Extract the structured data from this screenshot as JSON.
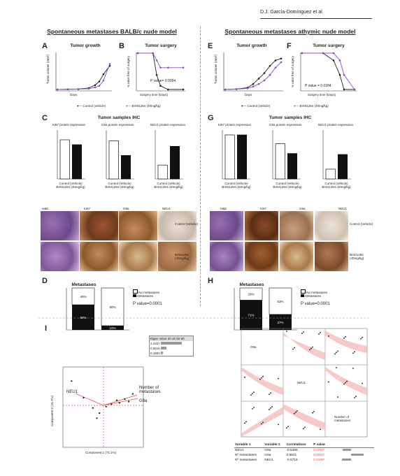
{
  "header": {
    "author": "D.J. García-Domínguez et al."
  },
  "left": {
    "title": "Spontaneous metastases BALB/c nude model",
    "panel_A": {
      "letter": "A",
      "title": "Tumor growth",
      "ylabel": "Tumor volume (mm³)",
      "xlabel": "Days"
    },
    "panel_B": {
      "letter": "B",
      "title": "Tumor surgery",
      "ylabel": "% mice free of surgery",
      "xlabel": "Surgery time (Days)",
      "pvalue": "P value= 0.0004"
    },
    "legend": {
      "control": "Control (vehicle)",
      "treat": "BIX01294 (40mg/kg)"
    },
    "panel_C": {
      "letter": "C",
      "title": "Tumor samples IHC",
      "ki67": "Ki67 protein expression",
      "g9a": "G9a protein expression",
      "neu1": "NEU1 protein expression",
      "ki67_ylabel": "% Ki67 positive tumor cells",
      "g9a_ylabel": "% G9a strong positive tumor cells",
      "neu1_ylabel": "H-score of NEU1 tumor cells",
      "cat_control": "Control (Vehicle)",
      "cat_treat": "BIX01294 (40mg/kg)"
    },
    "ihc": {
      "cols": [
        "H&E",
        "Ki67",
        "G9a",
        "NEU1"
      ],
      "row1": "Control (Vehicle)",
      "row2": "BIX01294 (40mg/kg)"
    },
    "panel_D": {
      "letter": "D",
      "title": "Metastases",
      "ylabel": "Percentage of mice",
      "legend_no": "No metastases",
      "legend_yes": "Metastases",
      "bar1_no": "40%",
      "bar1_yes": "60%",
      "bar2_no": "90%",
      "bar2_yes": "10%",
      "pvalue": "P value=0.0001"
    }
  },
  "right": {
    "title": "Spontaneous metastases athymic nude model",
    "panel_E": {
      "letter": "E",
      "title": "Tumor growth",
      "ylabel": "Tumor volume (mm³)",
      "xlabel": "Days"
    },
    "panel_F": {
      "letter": "F",
      "title": "Tumor surgery",
      "ylabel": "% mice free of surgery",
      "xlabel": "Surgery time (Days)",
      "pvalue": "P value = 0.0184"
    },
    "legend": {
      "control": "Control (vehicle)",
      "treat": "BIX01294 (40mg/kg)"
    },
    "panel_G": {
      "letter": "G",
      "title": "Tumor samples IHC",
      "ki67": "Ki67 protein expression",
      "g9a": "G9a protein expression",
      "neu1": "NEU1 protein expression"
    },
    "ihc": {
      "cols": [
        "H&E",
        "Ki67",
        "G9a",
        "NEU1"
      ],
      "row1": "Control (Vehicle)",
      "row2": "BIX01294 (40mg/kg)"
    },
    "panel_H": {
      "letter": "H",
      "title": "Metastases",
      "ylabel": "Percentage of mice",
      "legend_no": "No metastases",
      "legend_yes": "Metastases",
      "bar1_no": "29%",
      "bar1_yes": "71%",
      "bar2_no": "63%",
      "bar2_yes": "37%",
      "pvalue": "P value=0.0001"
    }
  },
  "panel_I": {
    "letter": "I",
    "xlabel": "Component 1 (71.1%)",
    "ylabel": "Component 2 (16.7%)",
    "eigen_title": "Eigen value",
    "eigen_scale": "20 40 60 80",
    "eigen_values": [
      "2.2327",
      "0.5516",
      "0.1803"
    ],
    "var_neu1": "NEU1",
    "var_meta": "Number of metastases",
    "var_g9a": "G9a",
    "matrix_g9a": "G9a",
    "matrix_neu1": "NEU1",
    "matrix_meta": "Number of metastases",
    "table_headers": [
      "Variable 1",
      "Variable 2",
      "Correlations",
      "P value"
    ],
    "table_rows": [
      [
        "NEU1",
        "G9a",
        "-0.5366",
        "0.0252*"
      ],
      [
        "Nº metastases",
        "G9a",
        "0.8541",
        "0.0004*"
      ],
      [
        "Nº metastases",
        "NEU1",
        "-0.5716",
        "0.0165*"
      ]
    ]
  },
  "colors": {
    "control": "#222222",
    "treat": "#8a4fbf",
    "red": "#d9534f",
    "pink": "#f3b3b0"
  },
  "chart_data": [
    {
      "type": "line",
      "panel": "A",
      "x": [
        0,
        5,
        10,
        15,
        18,
        20,
        22,
        25
      ],
      "series": [
        {
          "name": "Control (vehicle)",
          "values": [
            0,
            5,
            10,
            40,
            120,
            220,
            420,
            650
          ]
        },
        {
          "name": "BIX01294 (40mg/kg)",
          "values": [
            0,
            5,
            8,
            20,
            60,
            100,
            250,
            700
          ]
        }
      ],
      "ylim": [
        0,
        1000
      ]
    },
    {
      "type": "line",
      "panel": "B",
      "x": [
        0,
        20,
        25,
        30,
        40,
        60
      ],
      "series": [
        {
          "name": "Control (vehicle)",
          "values": [
            100,
            100,
            40,
            10,
            0,
            0
          ]
        },
        {
          "name": "BIX01294 (40mg/kg)",
          "values": [
            100,
            100,
            80,
            60,
            60,
            60
          ]
        }
      ],
      "ylim": [
        0,
        100
      ]
    },
    {
      "type": "bar",
      "panel": "C-Ki67",
      "categories": [
        "Control (Vehicle)",
        "BIX01294 (40mg/kg)"
      ],
      "values": [
        80,
        70
      ],
      "ylim": [
        0,
        100
      ]
    },
    {
      "type": "bar",
      "panel": "C-G9a",
      "categories": [
        "Control (Vehicle)",
        "BIX01294 (40mg/kg)"
      ],
      "values": [
        78,
        48
      ],
      "ylim": [
        0,
        100
      ]
    },
    {
      "type": "bar",
      "panel": "C-NEU1",
      "categories": [
        "Control (Vehicle)",
        "BIX01294 (40mg/kg)"
      ],
      "values": [
        85,
        200
      ],
      "ylim": [
        0,
        300
      ]
    },
    {
      "type": "bar",
      "panel": "D",
      "categories": [
        "Control (Vehicle)",
        "BIX01294 (40mg/kg)"
      ],
      "series": [
        {
          "name": "Metastases",
          "values": [
            60,
            10
          ]
        },
        {
          "name": "No metastases",
          "values": [
            40,
            90
          ]
        }
      ],
      "ylim": [
        0,
        100
      ]
    },
    {
      "type": "line",
      "panel": "E",
      "x": [
        0,
        4,
        8,
        10,
        12,
        14,
        16,
        18,
        20
      ],
      "series": [
        {
          "name": "Control (vehicle)",
          "values": [
            0,
            10,
            50,
            150,
            300,
            450,
            650,
            800,
            850
          ]
        },
        {
          "name": "BIX01294 (40mg/kg)",
          "values": [
            0,
            8,
            30,
            80,
            150,
            250,
            400,
            600,
            750
          ]
        }
      ],
      "ylim": [
        0,
        1000
      ]
    },
    {
      "type": "line",
      "panel": "F",
      "x": [
        0,
        10,
        15,
        18,
        20,
        25
      ],
      "series": [
        {
          "name": "Control (vehicle)",
          "values": [
            100,
            100,
            80,
            40,
            0,
            0
          ]
        },
        {
          "name": "BIX01294 (40mg/kg)",
          "values": [
            100,
            100,
            100,
            80,
            40,
            0
          ]
        }
      ],
      "ylim": [
        0,
        100
      ]
    },
    {
      "type": "bar",
      "panel": "G-Ki67",
      "categories": [
        "Control (Vehicle)",
        "BIX01294 (40mg/kg)"
      ],
      "values": [
        90,
        90
      ],
      "ylim": [
        0,
        100
      ]
    },
    {
      "type": "bar",
      "panel": "G-G9a",
      "categories": [
        "Control (Vehicle)",
        "BIX01294 (40mg/kg)"
      ],
      "values": [
        72,
        52
      ],
      "ylim": [
        0,
        100
      ]
    },
    {
      "type": "bar",
      "panel": "G-NEU1",
      "categories": [
        "Control (Vehicle)",
        "BIX01294 (40mg/kg)"
      ],
      "values": [
        20,
        50
      ],
      "ylim": [
        0,
        100
      ]
    },
    {
      "type": "bar",
      "panel": "H",
      "categories": [
        "Control (Vehicle)",
        "BIX01294 (40mg/kg)"
      ],
      "series": [
        {
          "name": "Metastases",
          "values": [
            71,
            37
          ]
        },
        {
          "name": "No metastases",
          "values": [
            29,
            63
          ]
        }
      ],
      "ylim": [
        0,
        100
      ]
    },
    {
      "type": "scatter",
      "panel": "I",
      "x": [
        -2.4,
        -1.5,
        -0.8,
        -0.5,
        -0.3,
        0.2,
        0.6,
        1.0,
        1.2,
        1.6,
        1.9,
        2.2
      ],
      "y": [
        1.9,
        0.6,
        -0.2,
        -1.0,
        -0.6,
        -0.1,
        0.1,
        0.4,
        0.2,
        0.5,
        0.3,
        0.9
      ],
      "xlim": [
        -3,
        3
      ],
      "ylim": [
        -3,
        3
      ]
    }
  ]
}
